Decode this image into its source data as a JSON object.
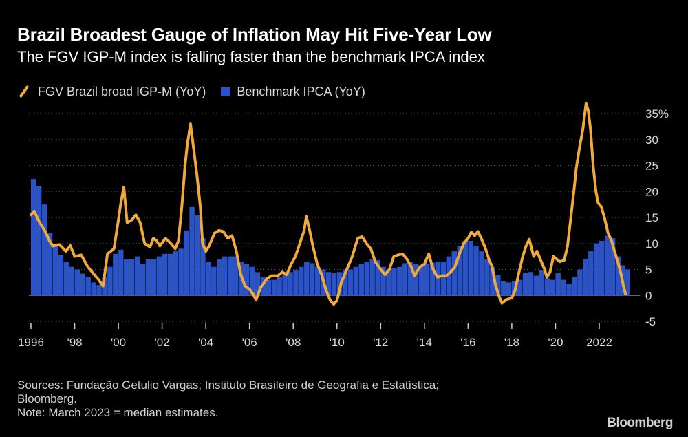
{
  "header": {
    "title": "Brazil Broadest Gauge of Inflation May Hit Five-Year Low",
    "subtitle": "The FGV IGP-M index is falling faster than the benchmark IPCA index"
  },
  "legend": {
    "line_label": "FGV Brazil broad IGP-M (YoY)",
    "bar_label": "Benchmark IPCA (YoY)"
  },
  "footer": {
    "sources_line1": "Sources: Fundação Getulio Vargas; Instituto Brasileiro de Geografia e Estatística;",
    "sources_line2": "Bloomberg.",
    "note": "Note: March 2023 = median estimates.",
    "brand": "Bloomberg"
  },
  "colors": {
    "background": "#000000",
    "line": "#f0a93b",
    "bars": "#2a53c7",
    "grid": "#555555",
    "text": "#ffffff",
    "muted": "#cfcfcf"
  },
  "chart_data": {
    "type": "line+bar",
    "x_range": [
      1996.0,
      2023.25
    ],
    "ylim": [
      -5,
      35
    ],
    "y_ticks": [
      35,
      30,
      25,
      20,
      15,
      10,
      5,
      0,
      -5
    ],
    "y_tick_labels": [
      "35%",
      "30",
      "25",
      "20",
      "15",
      "10",
      "5",
      "0",
      "-5"
    ],
    "x_ticks": [
      1996,
      1998,
      2000,
      2002,
      2004,
      2006,
      2008,
      2010,
      2012,
      2014,
      2016,
      2018,
      2020,
      2022
    ],
    "x_tick_labels": [
      "1996",
      "'98",
      "'00",
      "'02",
      "'04",
      "'06",
      "'08",
      "'10",
      "'12",
      "'14",
      "'16",
      "'18",
      "'20",
      "2022"
    ],
    "series": [
      {
        "name": "FGV Brazil broad IGP-M (YoY)",
        "kind": "line",
        "points": [
          [
            1996.0,
            15.5
          ],
          [
            1996.15,
            16.2
          ],
          [
            1996.4,
            14.0
          ],
          [
            1996.65,
            12.3
          ],
          [
            1996.85,
            10.5
          ],
          [
            1997.0,
            9.5
          ],
          [
            1997.3,
            9.8
          ],
          [
            1997.6,
            8.5
          ],
          [
            1997.8,
            9.6
          ],
          [
            1998.0,
            7.5
          ],
          [
            1998.3,
            7.8
          ],
          [
            1998.6,
            5.5
          ],
          [
            1998.9,
            4.0
          ],
          [
            1999.1,
            3.0
          ],
          [
            1999.3,
            1.8
          ],
          [
            1999.5,
            8.0
          ],
          [
            1999.8,
            9.0
          ],
          [
            2000.0,
            14.5
          ],
          [
            2000.1,
            17.5
          ],
          [
            2000.25,
            20.8
          ],
          [
            2000.4,
            14.0
          ],
          [
            2000.6,
            14.5
          ],
          [
            2000.8,
            15.5
          ],
          [
            2001.0,
            14.0
          ],
          [
            2001.2,
            10.0
          ],
          [
            2001.45,
            9.3
          ],
          [
            2001.6,
            11.0
          ],
          [
            2001.75,
            10.5
          ],
          [
            2001.9,
            9.5
          ],
          [
            2002.15,
            11.0
          ],
          [
            2002.4,
            10.0
          ],
          [
            2002.6,
            9.0
          ],
          [
            2002.75,
            10.5
          ],
          [
            2002.9,
            17.0
          ],
          [
            2003.05,
            25.0
          ],
          [
            2003.15,
            29.0
          ],
          [
            2003.3,
            33.0
          ],
          [
            2003.45,
            28.0
          ],
          [
            2003.6,
            23.0
          ],
          [
            2003.75,
            17.0
          ],
          [
            2003.85,
            10.0
          ],
          [
            2004.0,
            8.5
          ],
          [
            2004.15,
            9.5
          ],
          [
            2004.4,
            12.0
          ],
          [
            2004.6,
            12.5
          ],
          [
            2004.8,
            12.3
          ],
          [
            2005.0,
            11.0
          ],
          [
            2005.2,
            11.5
          ],
          [
            2005.4,
            8.5
          ],
          [
            2005.6,
            4.0
          ],
          [
            2005.8,
            1.8
          ],
          [
            2006.0,
            1.2
          ],
          [
            2006.2,
            0.0
          ],
          [
            2006.3,
            -0.9
          ],
          [
            2006.5,
            1.5
          ],
          [
            2006.8,
            3.2
          ],
          [
            2007.0,
            3.8
          ],
          [
            2007.3,
            3.8
          ],
          [
            2007.5,
            4.5
          ],
          [
            2007.7,
            4.0
          ],
          [
            2007.9,
            6.0
          ],
          [
            2008.1,
            7.5
          ],
          [
            2008.3,
            10.0
          ],
          [
            2008.5,
            12.5
          ],
          [
            2008.6,
            15.2
          ],
          [
            2008.75,
            12.5
          ],
          [
            2008.9,
            9.5
          ],
          [
            2009.1,
            6.0
          ],
          [
            2009.3,
            4.0
          ],
          [
            2009.5,
            1.0
          ],
          [
            2009.7,
            -1.0
          ],
          [
            2009.85,
            -1.7
          ],
          [
            2010.0,
            -1.0
          ],
          [
            2010.2,
            2.5
          ],
          [
            2010.5,
            5.5
          ],
          [
            2010.7,
            7.5
          ],
          [
            2010.95,
            11.0
          ],
          [
            2011.15,
            11.3
          ],
          [
            2011.35,
            10.0
          ],
          [
            2011.55,
            9.0
          ],
          [
            2011.75,
            6.5
          ],
          [
            2012.0,
            5.0
          ],
          [
            2012.2,
            4.0
          ],
          [
            2012.4,
            5.0
          ],
          [
            2012.6,
            7.5
          ],
          [
            2012.8,
            7.8
          ],
          [
            2013.0,
            8.0
          ],
          [
            2013.2,
            7.0
          ],
          [
            2013.4,
            5.5
          ],
          [
            2013.55,
            3.8
          ],
          [
            2013.8,
            5.5
          ],
          [
            2014.0,
            6.0
          ],
          [
            2014.2,
            8.0
          ],
          [
            2014.4,
            5.0
          ],
          [
            2014.6,
            3.5
          ],
          [
            2014.8,
            3.8
          ],
          [
            2015.0,
            3.8
          ],
          [
            2015.2,
            4.5
          ],
          [
            2015.4,
            5.5
          ],
          [
            2015.6,
            8.0
          ],
          [
            2015.8,
            10.0
          ],
          [
            2016.0,
            11.0
          ],
          [
            2016.15,
            12.2
          ],
          [
            2016.3,
            11.5
          ],
          [
            2016.45,
            12.3
          ],
          [
            2016.6,
            11.0
          ],
          [
            2016.8,
            9.0
          ],
          [
            2016.95,
            7.0
          ],
          [
            2017.1,
            5.5
          ],
          [
            2017.25,
            2.0
          ],
          [
            2017.4,
            0.0
          ],
          [
            2017.55,
            -1.5
          ],
          [
            2017.75,
            -0.8
          ],
          [
            2018.0,
            -0.5
          ],
          [
            2018.15,
            1.0
          ],
          [
            2018.3,
            4.0
          ],
          [
            2018.5,
            7.5
          ],
          [
            2018.65,
            9.5
          ],
          [
            2018.8,
            10.8
          ],
          [
            2019.0,
            7.5
          ],
          [
            2019.15,
            8.5
          ],
          [
            2019.3,
            7.0
          ],
          [
            2019.5,
            5.0
          ],
          [
            2019.6,
            3.5
          ],
          [
            2019.75,
            4.5
          ],
          [
            2019.9,
            7.5
          ],
          [
            2020.05,
            7.0
          ],
          [
            2020.2,
            6.5
          ],
          [
            2020.4,
            6.8
          ],
          [
            2020.55,
            9.5
          ],
          [
            2020.7,
            15.0
          ],
          [
            2020.85,
            20.5
          ],
          [
            2020.95,
            24.5
          ],
          [
            2021.1,
            28.5
          ],
          [
            2021.25,
            32.0
          ],
          [
            2021.4,
            37.0
          ],
          [
            2021.5,
            35.5
          ],
          [
            2021.6,
            32.0
          ],
          [
            2021.72,
            25.0
          ],
          [
            2021.85,
            20.0
          ],
          [
            2021.95,
            17.8
          ],
          [
            2022.1,
            17.0
          ],
          [
            2022.25,
            14.8
          ],
          [
            2022.4,
            12.0
          ],
          [
            2022.55,
            10.7
          ],
          [
            2022.7,
            8.5
          ],
          [
            2022.85,
            6.5
          ],
          [
            2023.0,
            4.0
          ],
          [
            2023.1,
            2.0
          ],
          [
            2023.2,
            0.3
          ]
        ]
      },
      {
        "name": "Benchmark IPCA (YoY)",
        "kind": "bar",
        "points": [
          [
            1996.0,
            22.4
          ],
          [
            1996.25,
            21.0
          ],
          [
            1996.5,
            17.5
          ],
          [
            1996.75,
            12.0
          ],
          [
            1997.0,
            9.5
          ],
          [
            1997.25,
            7.8
          ],
          [
            1997.5,
            6.5
          ],
          [
            1997.75,
            5.5
          ],
          [
            1998.0,
            5.0
          ],
          [
            1998.25,
            4.2
          ],
          [
            1998.5,
            3.5
          ],
          [
            1998.75,
            2.5
          ],
          [
            1999.0,
            2.0
          ],
          [
            1999.25,
            3.5
          ],
          [
            1999.5,
            5.5
          ],
          [
            1999.75,
            8.0
          ],
          [
            2000.0,
            8.8
          ],
          [
            2000.25,
            7.0
          ],
          [
            2000.5,
            7.0
          ],
          [
            2000.75,
            7.5
          ],
          [
            2001.0,
            6.0
          ],
          [
            2001.25,
            7.0
          ],
          [
            2001.5,
            7.0
          ],
          [
            2001.75,
            7.5
          ],
          [
            2002.0,
            8.0
          ],
          [
            2002.25,
            8.0
          ],
          [
            2002.5,
            8.5
          ],
          [
            2002.75,
            9.0
          ],
          [
            2003.0,
            12.5
          ],
          [
            2003.25,
            17.0
          ],
          [
            2003.5,
            15.5
          ],
          [
            2003.75,
            11.0
          ],
          [
            2004.0,
            6.5
          ],
          [
            2004.25,
            5.5
          ],
          [
            2004.5,
            7.0
          ],
          [
            2004.75,
            7.5
          ],
          [
            2005.0,
            7.5
          ],
          [
            2005.25,
            7.5
          ],
          [
            2005.5,
            6.5
          ],
          [
            2005.75,
            6.0
          ],
          [
            2006.0,
            5.5
          ],
          [
            2006.25,
            4.5
          ],
          [
            2006.5,
            3.5
          ],
          [
            2006.75,
            3.0
          ],
          [
            2007.0,
            3.0
          ],
          [
            2007.25,
            3.5
          ],
          [
            2007.5,
            4.0
          ],
          [
            2007.75,
            4.5
          ],
          [
            2008.0,
            4.8
          ],
          [
            2008.25,
            5.5
          ],
          [
            2008.5,
            6.5
          ],
          [
            2008.75,
            6.2
          ],
          [
            2009.0,
            5.5
          ],
          [
            2009.25,
            5.0
          ],
          [
            2009.5,
            4.5
          ],
          [
            2009.75,
            4.3
          ],
          [
            2010.0,
            4.5
          ],
          [
            2010.25,
            5.0
          ],
          [
            2010.5,
            5.0
          ],
          [
            2010.75,
            5.5
          ],
          [
            2011.0,
            6.0
          ],
          [
            2011.25,
            6.5
          ],
          [
            2011.5,
            7.0
          ],
          [
            2011.75,
            6.8
          ],
          [
            2012.0,
            5.5
          ],
          [
            2012.25,
            5.0
          ],
          [
            2012.5,
            5.2
          ],
          [
            2012.75,
            5.5
          ],
          [
            2013.0,
            6.2
          ],
          [
            2013.25,
            6.5
          ],
          [
            2013.5,
            6.0
          ],
          [
            2013.75,
            5.8
          ],
          [
            2014.0,
            6.0
          ],
          [
            2014.25,
            6.3
          ],
          [
            2014.5,
            6.5
          ],
          [
            2014.75,
            6.5
          ],
          [
            2015.0,
            7.5
          ],
          [
            2015.25,
            8.5
          ],
          [
            2015.5,
            9.5
          ],
          [
            2015.75,
            10.5
          ],
          [
            2016.0,
            10.5
          ],
          [
            2016.25,
            9.5
          ],
          [
            2016.5,
            8.5
          ],
          [
            2016.75,
            7.0
          ],
          [
            2017.0,
            5.5
          ],
          [
            2017.25,
            4.0
          ],
          [
            2017.5,
            2.7
          ],
          [
            2017.75,
            2.5
          ],
          [
            2018.0,
            2.8
          ],
          [
            2018.25,
            3.0
          ],
          [
            2018.5,
            4.3
          ],
          [
            2018.75,
            4.5
          ],
          [
            2019.0,
            3.8
          ],
          [
            2019.25,
            4.8
          ],
          [
            2019.5,
            3.3
          ],
          [
            2019.75,
            3.0
          ],
          [
            2020.0,
            4.3
          ],
          [
            2020.25,
            3.0
          ],
          [
            2020.5,
            2.2
          ],
          [
            2020.75,
            3.5
          ],
          [
            2021.0,
            5.0
          ],
          [
            2021.25,
            7.0
          ],
          [
            2021.5,
            8.5
          ],
          [
            2021.75,
            10.0
          ],
          [
            2022.0,
            10.5
          ],
          [
            2022.25,
            11.5
          ],
          [
            2022.5,
            11.0
          ],
          [
            2022.75,
            7.5
          ],
          [
            2023.0,
            5.8
          ],
          [
            2023.2,
            5.0
          ]
        ]
      }
    ]
  }
}
